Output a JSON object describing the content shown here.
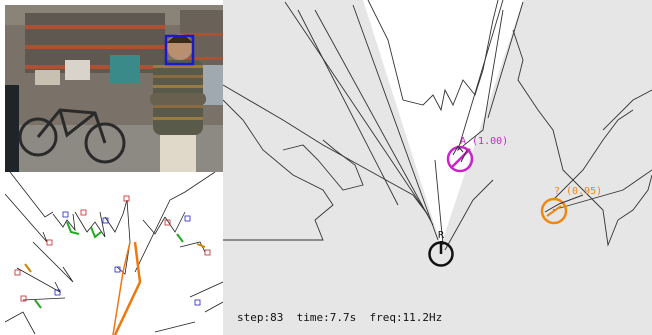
{
  "camera": {
    "face_box_color": "#1a1acc",
    "person_shirt_color": "#5a5a4a"
  },
  "map": {
    "free_space_color": "#ffffff",
    "background_color": "#e6e6e6",
    "robot_label": "R",
    "targets": [
      {
        "id": "A",
        "label": "A (1.00)",
        "color": "#cc22cc"
      },
      {
        "id": "?",
        "label": "? (0.95)",
        "color": "#ee8811"
      }
    ]
  },
  "status": {
    "text": "step:83  time:7.7s  freq:11.2Hz"
  },
  "scan": {
    "beam_color": "#ee7711",
    "leg_colors": [
      "#cc2222",
      "#2222cc",
      "#22aa22",
      "#cc8800"
    ]
  }
}
